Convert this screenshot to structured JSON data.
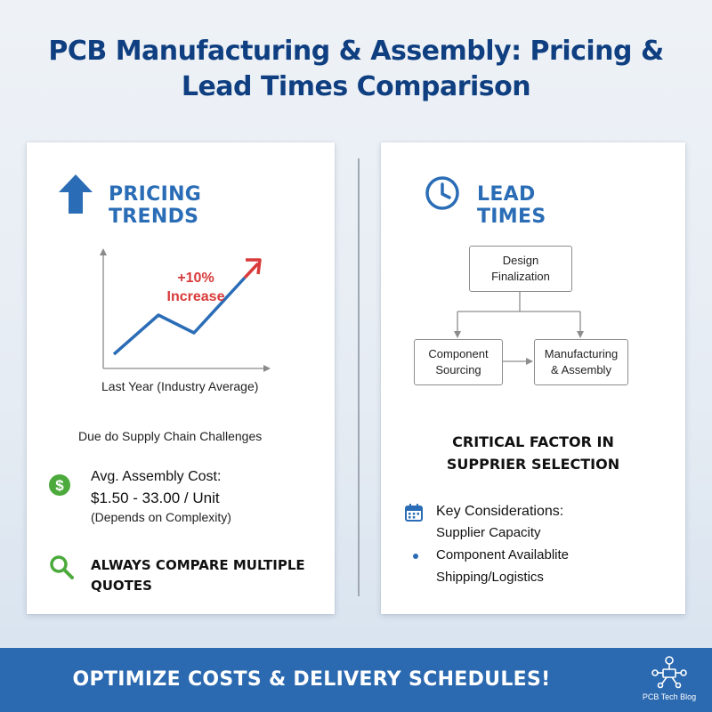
{
  "title": {
    "line1": "PCB Manufacturing & Assembly: Pricing &",
    "line2": "Lead Times Comparison"
  },
  "pricing": {
    "heading": "PRICING TRENDS",
    "chart": {
      "annotation_value": "+10%",
      "annotation_label": "Increase",
      "xlabel": "Last Year (Industry Average)"
    },
    "cause": "Due do Supply Chain Challenges",
    "cost_label": "Avg. Assembly Cost:",
    "cost_value": "$1.50 - 33.00 / Unit",
    "cost_note": "(Depends on Complexity)",
    "tip_line1": "ALWAYS COMPARE MULTIPLE",
    "tip_line2": "QUOTES"
  },
  "lead": {
    "heading": "LEAD TIMES",
    "flow": {
      "step1_line1": "Design",
      "step1_line2": "Finalization",
      "step2_line1": "Component",
      "step2_line2": "Sourcing",
      "step3_line1": "Manufacturing",
      "step3_line2": "& Assembly"
    },
    "critical_line1": "CRITICAL FACTOR IN",
    "critical_line2": "SUPPRIER SELECTION",
    "considerations_label": "Key Considerations:",
    "considerations": [
      "Supplier Capacity",
      "Component Availablite",
      "Shipping/Logistics"
    ]
  },
  "footer": {
    "cta": "OPTIMIZE COSTS & DELIVERY SCHEDULES!",
    "brand": "PCB Tech Blog"
  },
  "colors": {
    "title": "#0f3f80",
    "accent_blue": "#2a6db6",
    "trend_red": "#d93a3a",
    "dollar_green": "#4caa3c",
    "bar_blue": "#2b69b0"
  },
  "icons": {
    "pricing": "up-arrow-icon",
    "lead": "clock-icon",
    "cost": "dollar-icon",
    "tip": "magnifier-icon",
    "considerations": "calendar-icon",
    "brand": "circuit-logo"
  }
}
